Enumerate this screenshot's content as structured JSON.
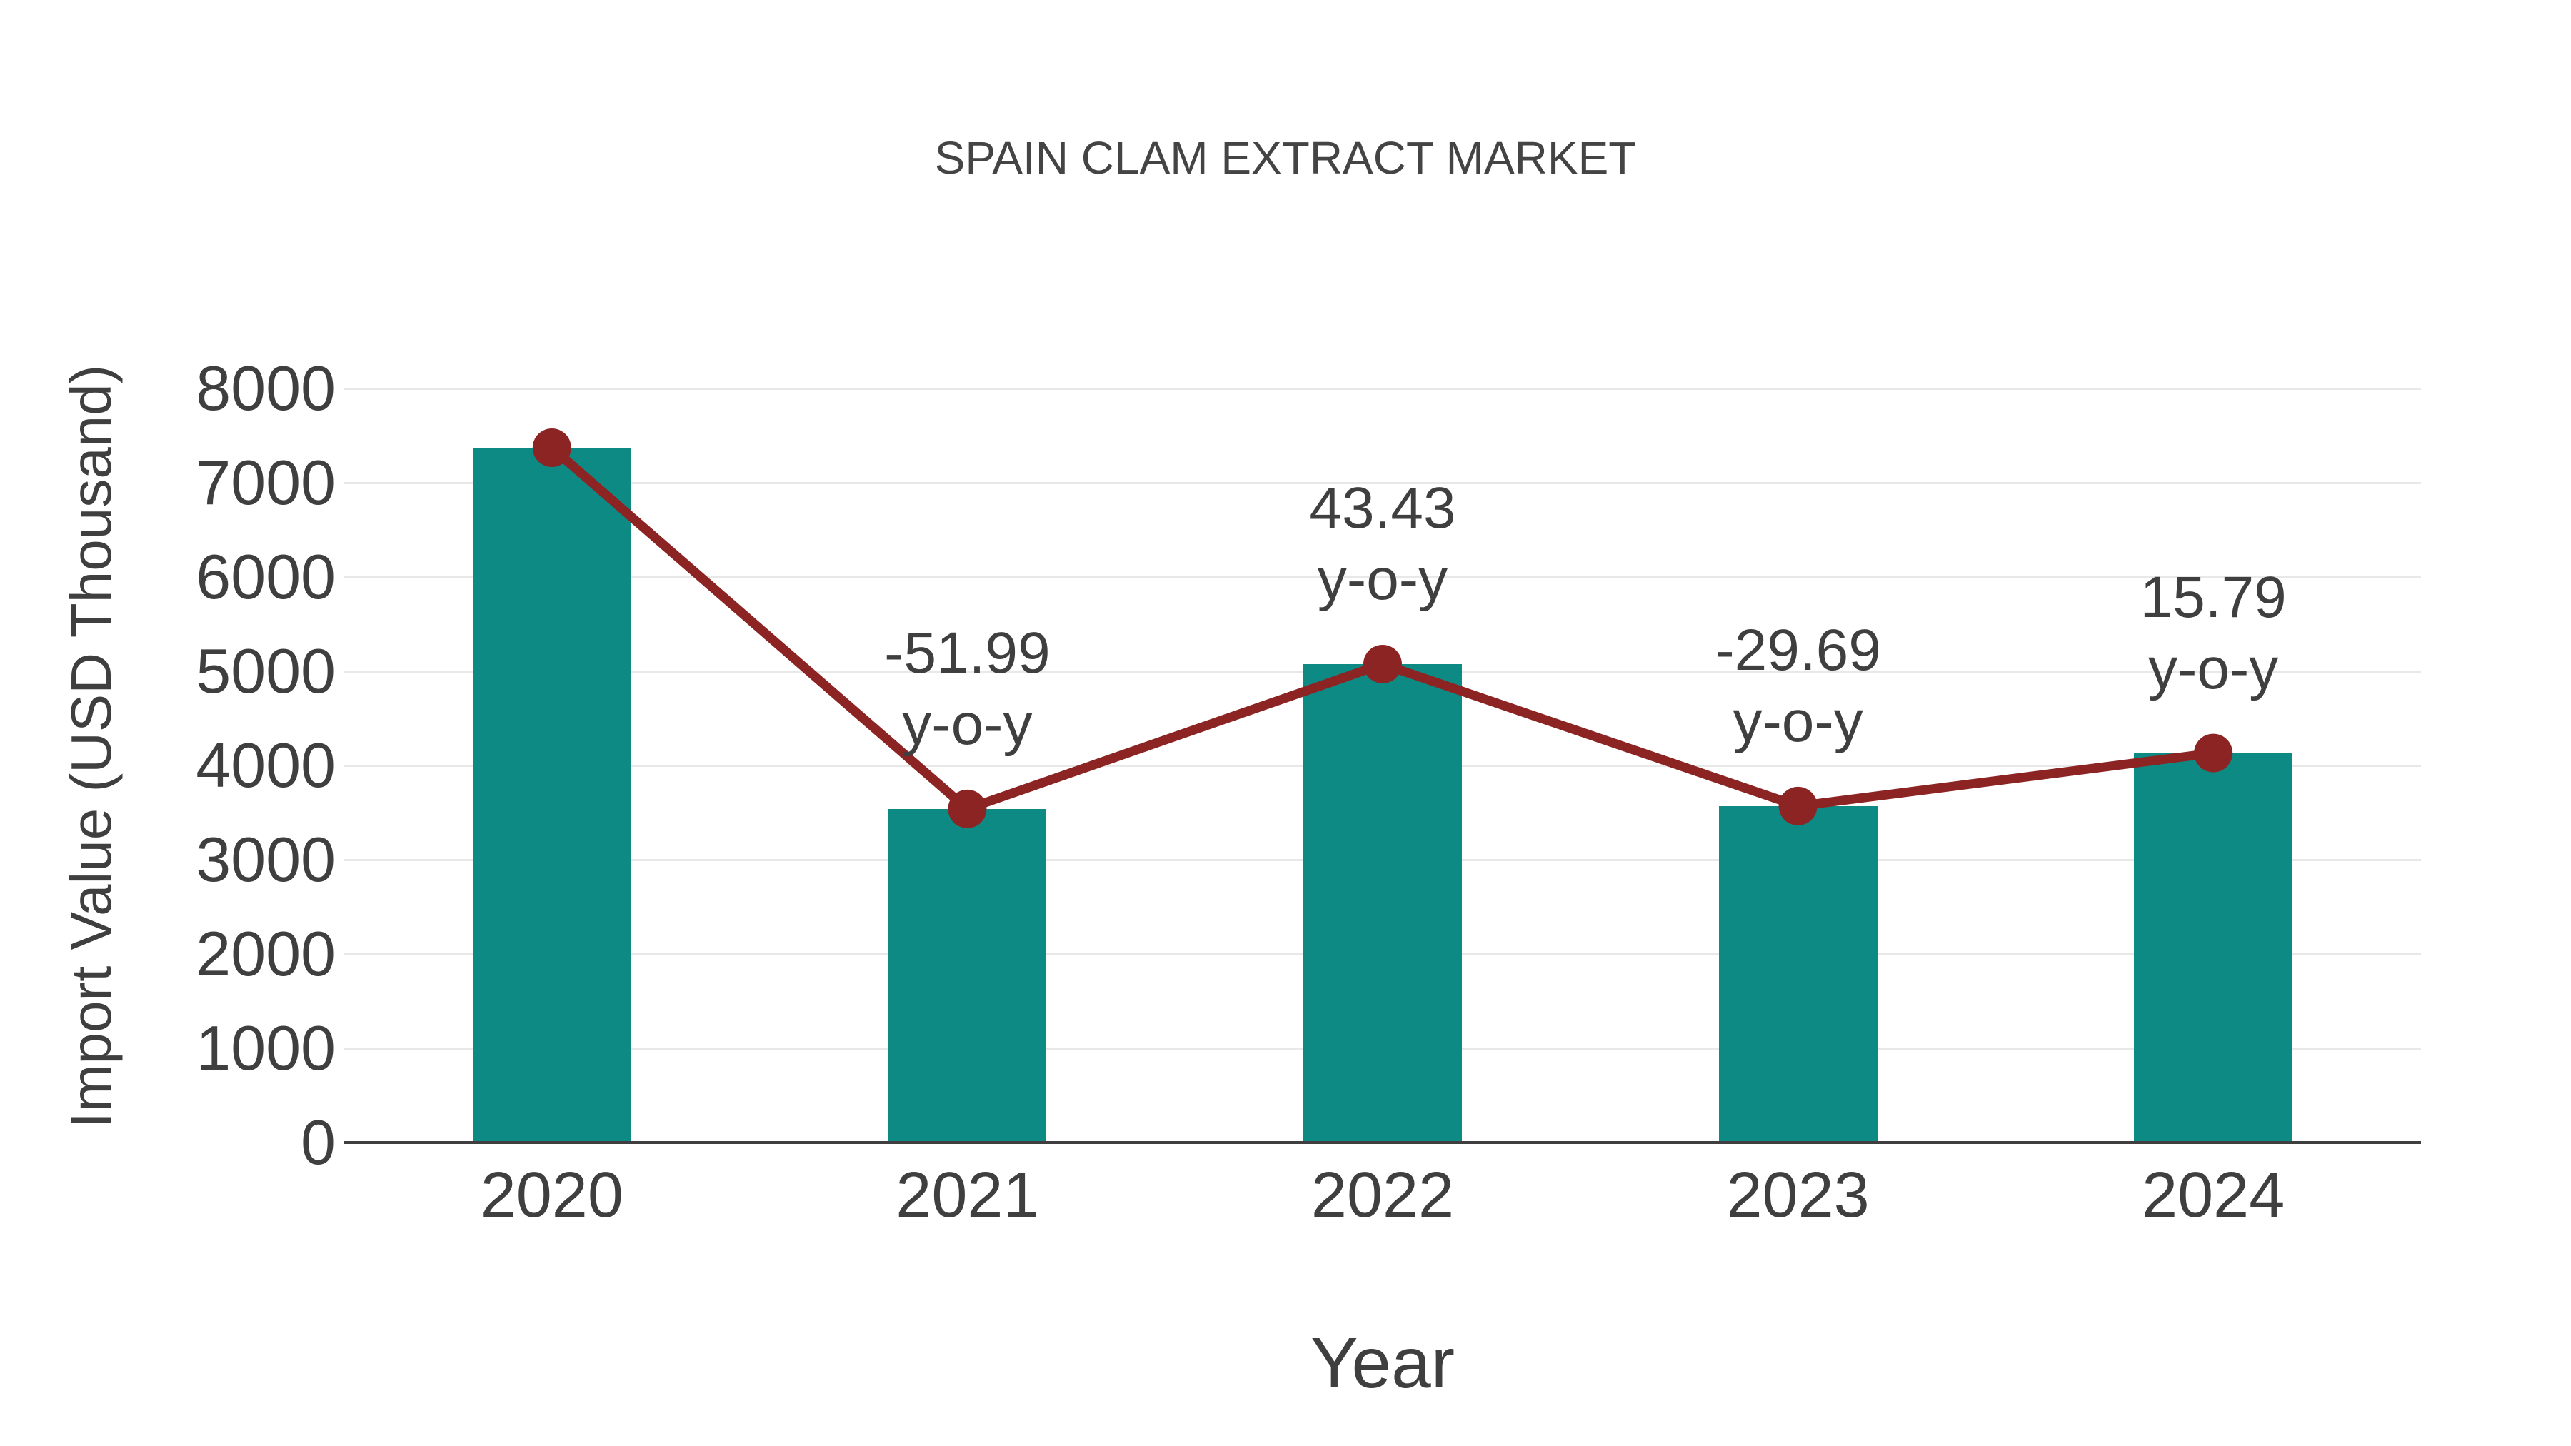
{
  "chart_data": {
    "type": "bar",
    "title": "SPAIN CLAM EXTRACT MARKET",
    "xlabel": "Year",
    "ylabel": "Import Value (USD Thousand)",
    "categories": [
      "2020",
      "2021",
      "2022",
      "2023",
      "2024"
    ],
    "series": [
      {
        "name": "Import Value (USD Thousand)",
        "type": "bar",
        "color": "#0e8a85",
        "values": [
          7371,
          3539,
          5076,
          3569,
          4132
        ]
      },
      {
        "name": "Year-over-year trend",
        "type": "line",
        "color": "#8b2423",
        "values": [
          7371,
          3539,
          5076,
          3569,
          4132
        ]
      }
    ],
    "annotations": [
      {
        "category": "2021",
        "value": "-51.99",
        "suffix": "y-o-y"
      },
      {
        "category": "2022",
        "value": "43.43",
        "suffix": "y-o-y"
      },
      {
        "category": "2023",
        "value": "-29.69",
        "suffix": "y-o-y"
      },
      {
        "category": "2024",
        "value": "15.79",
        "suffix": "y-o-y"
      }
    ],
    "ylim": [
      0,
      8000
    ],
    "yticks": [
      0,
      1000,
      2000,
      3000,
      4000,
      5000,
      6000,
      7000,
      8000
    ],
    "grid": true,
    "legend": "none",
    "colors": {
      "bar": "#0e8a85",
      "line": "#8b2423",
      "text": "#3f3f3f",
      "gridline": "#e8e8e8",
      "axis_line": "#3f3f3f",
      "background": "#ffffff"
    }
  }
}
